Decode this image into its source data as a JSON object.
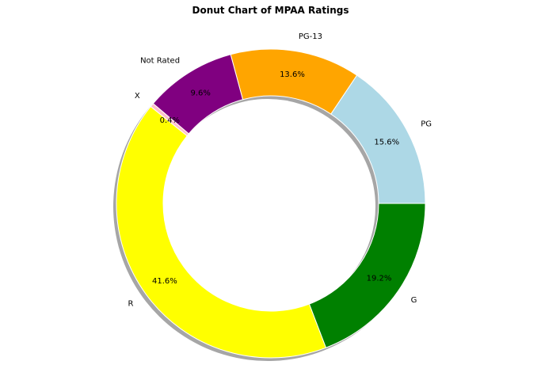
{
  "chart_data": {
    "type": "pie",
    "style": "donut",
    "title": "Donut Chart of MPAA Ratings",
    "shadow": true,
    "slices": [
      {
        "label": "PG",
        "pct_label": "15.6%",
        "value": 15.6,
        "color": "#add8e6"
      },
      {
        "label": "PG-13",
        "pct_label": "13.6%",
        "value": 13.6,
        "color": "#ffa500"
      },
      {
        "label": "Not Rated",
        "pct_label": "9.6%",
        "value": 9.6,
        "color": "#800080"
      },
      {
        "label": "X",
        "pct_label": "0.4%",
        "value": 0.4,
        "color": "#ffc0cb"
      },
      {
        "label": "R",
        "pct_label": "41.6%",
        "value": 41.6,
        "color": "#ffff00"
      },
      {
        "label": "G",
        "pct_label": "19.2%",
        "value": 19.2,
        "color": "#008000"
      }
    ]
  }
}
